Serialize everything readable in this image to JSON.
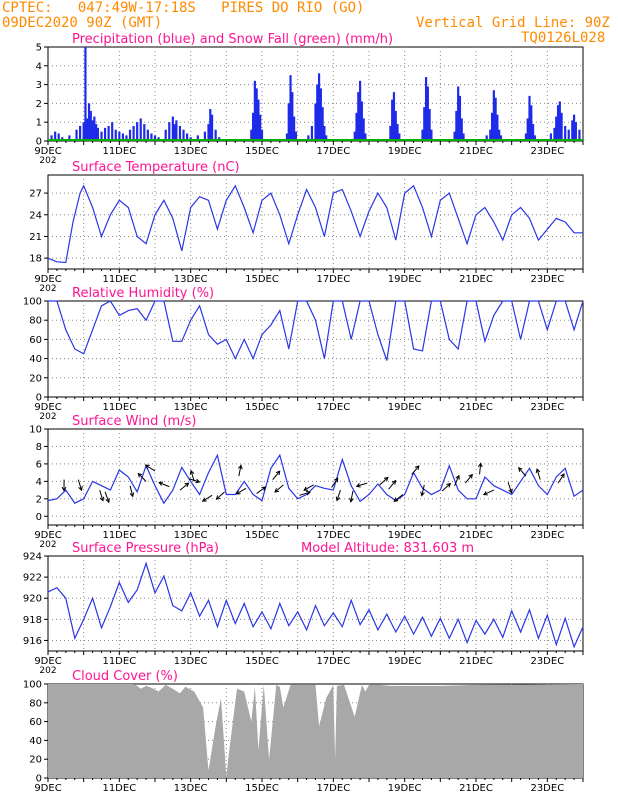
{
  "header": {
    "left_line1": "CPTEC:   047:49W-17:18S   PIRES DO RIO (GO)",
    "left_line2": "09DEC2020 90Z (GMT)",
    "right_line1": "Vertical Grid Line: 90Z",
    "right_line2": "TQ0126L028"
  },
  "colors": {
    "header": "#ff8a00",
    "title": "#ff1493",
    "line": "#2a36e6",
    "bar": "#1f2be8",
    "snow": "#00b000",
    "cloud": "#a8a8a8",
    "vector": "#000000",
    "axis": "#000000"
  },
  "x_tick_labels": [
    "9DEC",
    "11DEC",
    "13DEC",
    "15DEC",
    "17DEC",
    "19DEC",
    "21DEC",
    "23DEC"
  ],
  "clipped_year_label": "202",
  "chart_data": [
    {
      "type": "bar",
      "title": "Precipitation (blue) and Snow Fall (green) (mm/h)",
      "x_unit": "days since 9DEC 00Z",
      "xlim": [
        0,
        15
      ],
      "ylim": [
        0,
        5
      ],
      "yticks": [
        0,
        1,
        2,
        3,
        4,
        5
      ],
      "series": [
        {
          "name": "precipitation",
          "color": "#1f2be8",
          "points": [
            [
              0.1,
              0.3
            ],
            [
              0.2,
              0.5
            ],
            [
              0.3,
              0.4
            ],
            [
              0.4,
              0.2
            ],
            [
              0.5,
              0.1
            ],
            [
              0.6,
              0.3
            ],
            [
              0.8,
              0.6
            ],
            [
              0.9,
              0.8
            ],
            [
              1.0,
              1.0
            ],
            [
              1.05,
              5.0
            ],
            [
              1.1,
              1.2
            ],
            [
              1.15,
              2.0
            ],
            [
              1.2,
              1.6
            ],
            [
              1.25,
              1.1
            ],
            [
              1.3,
              1.3
            ],
            [
              1.35,
              0.9
            ],
            [
              1.4,
              0.7
            ],
            [
              1.5,
              0.5
            ],
            [
              1.6,
              0.7
            ],
            [
              1.7,
              0.8
            ],
            [
              1.8,
              1.0
            ],
            [
              1.9,
              0.6
            ],
            [
              2.0,
              0.5
            ],
            [
              2.1,
              0.4
            ],
            [
              2.2,
              0.3
            ],
            [
              2.3,
              0.6
            ],
            [
              2.4,
              0.8
            ],
            [
              2.5,
              1.0
            ],
            [
              2.6,
              1.2
            ],
            [
              2.7,
              0.9
            ],
            [
              2.8,
              0.6
            ],
            [
              2.9,
              0.4
            ],
            [
              3.0,
              0.3
            ],
            [
              3.1,
              0.2
            ],
            [
              3.3,
              0.6
            ],
            [
              3.4,
              1.0
            ],
            [
              3.5,
              1.3
            ],
            [
              3.55,
              0.9
            ],
            [
              3.6,
              1.1
            ],
            [
              3.7,
              0.8
            ],
            [
              3.8,
              0.6
            ],
            [
              3.9,
              0.4
            ],
            [
              4.0,
              0.2
            ],
            [
              4.2,
              0.3
            ],
            [
              4.4,
              0.5
            ],
            [
              4.5,
              0.9
            ],
            [
              4.55,
              1.7
            ],
            [
              4.6,
              1.4
            ],
            [
              4.7,
              0.6
            ],
            [
              4.8,
              0.2
            ],
            [
              5.7,
              0.6
            ],
            [
              5.75,
              1.5
            ],
            [
              5.8,
              3.2
            ],
            [
              5.85,
              2.8
            ],
            [
              5.9,
              2.2
            ],
            [
              5.95,
              1.4
            ],
            [
              6.0,
              0.6
            ],
            [
              6.7,
              0.4
            ],
            [
              6.75,
              2.0
            ],
            [
              6.8,
              3.5
            ],
            [
              6.85,
              2.6
            ],
            [
              6.9,
              1.3
            ],
            [
              6.95,
              0.5
            ],
            [
              7.3,
              0.3
            ],
            [
              7.4,
              0.8
            ],
            [
              7.5,
              2.0
            ],
            [
              7.55,
              3.0
            ],
            [
              7.6,
              3.6
            ],
            [
              7.65,
              2.8
            ],
            [
              7.7,
              1.8
            ],
            [
              7.75,
              0.8
            ],
            [
              7.8,
              0.3
            ],
            [
              8.6,
              0.5
            ],
            [
              8.65,
              1.5
            ],
            [
              8.7,
              2.6
            ],
            [
              8.75,
              3.2
            ],
            [
              8.8,
              2.1
            ],
            [
              8.85,
              1.2
            ],
            [
              8.9,
              0.4
            ],
            [
              9.6,
              0.8
            ],
            [
              9.65,
              2.2
            ],
            [
              9.7,
              2.6
            ],
            [
              9.75,
              1.6
            ],
            [
              9.8,
              0.9
            ],
            [
              9.85,
              0.4
            ],
            [
              10.5,
              0.6
            ],
            [
              10.55,
              1.8
            ],
            [
              10.6,
              3.4
            ],
            [
              10.65,
              2.9
            ],
            [
              10.7,
              1.7
            ],
            [
              10.75,
              0.6
            ],
            [
              11.4,
              0.5
            ],
            [
              11.45,
              1.6
            ],
            [
              11.5,
              2.9
            ],
            [
              11.55,
              2.4
            ],
            [
              11.6,
              1.2
            ],
            [
              11.65,
              0.4
            ],
            [
              12.3,
              0.3
            ],
            [
              12.4,
              0.6
            ],
            [
              12.45,
              1.5
            ],
            [
              12.5,
              2.7
            ],
            [
              12.55,
              2.3
            ],
            [
              12.6,
              1.4
            ],
            [
              12.65,
              0.6
            ],
            [
              12.7,
              0.3
            ],
            [
              13.4,
              0.4
            ],
            [
              13.45,
              1.2
            ],
            [
              13.5,
              2.4
            ],
            [
              13.55,
              1.9
            ],
            [
              13.6,
              0.9
            ],
            [
              13.65,
              0.3
            ],
            [
              14.1,
              0.4
            ],
            [
              14.2,
              0.7
            ],
            [
              14.25,
              1.3
            ],
            [
              14.3,
              1.9
            ],
            [
              14.35,
              2.1
            ],
            [
              14.4,
              1.5
            ],
            [
              14.5,
              0.8
            ],
            [
              14.6,
              0.6
            ],
            [
              14.7,
              1.1
            ],
            [
              14.75,
              1.4
            ],
            [
              14.8,
              1.0
            ],
            [
              14.9,
              0.6
            ]
          ]
        },
        {
          "name": "snow fall",
          "color": "#00b000",
          "points": [
            [
              0.0,
              0.0
            ],
            [
              15.0,
              0.0
            ]
          ]
        }
      ]
    },
    {
      "type": "line",
      "title": "Surface Temperature (nC)",
      "xlim": [
        0,
        15
      ],
      "ylim": [
        16.5,
        29.5
      ],
      "yticks": [
        18,
        21,
        24,
        27
      ],
      "x": [
        0,
        0.25,
        0.5,
        0.7,
        0.9,
        1.0,
        1.25,
        1.5,
        1.75,
        2.0,
        2.25,
        2.5,
        2.75,
        3.0,
        3.25,
        3.5,
        3.75,
        4.0,
        4.25,
        4.5,
        4.75,
        5.0,
        5.25,
        5.5,
        5.75,
        6.0,
        6.25,
        6.5,
        6.75,
        7.0,
        7.25,
        7.5,
        7.75,
        8.0,
        8.25,
        8.5,
        8.75,
        9.0,
        9.25,
        9.5,
        9.75,
        10.0,
        10.25,
        10.5,
        10.75,
        11.0,
        11.25,
        11.5,
        11.75,
        12.0,
        12.25,
        12.5,
        12.75,
        13.0,
        13.25,
        13.5,
        13.75,
        14.0,
        14.25,
        14.5,
        14.75,
        15.0
      ],
      "y": [
        18,
        17.5,
        17.4,
        23,
        27,
        28,
        25,
        21,
        24,
        26,
        25,
        21,
        20,
        24,
        26,
        23.5,
        19,
        25,
        26.5,
        26,
        22,
        26,
        28,
        25,
        21.5,
        26,
        27,
        24,
        20,
        24,
        27.5,
        25,
        21,
        27,
        27.5,
        24.5,
        21,
        24.5,
        27,
        25,
        20.5,
        27,
        28,
        25,
        21,
        26,
        27,
        23.5,
        20,
        24,
        25,
        23,
        20.5,
        24,
        25,
        23.5,
        20.5,
        22,
        23.5,
        23,
        21.5,
        21.5
      ]
    },
    {
      "type": "line",
      "title": "Relative Humidity (%)",
      "xlim": [
        0,
        15
      ],
      "ylim": [
        0,
        100
      ],
      "yticks": [
        0,
        20,
        40,
        60,
        80,
        100
      ],
      "x": [
        0,
        0.25,
        0.5,
        0.75,
        1.0,
        1.25,
        1.5,
        1.75,
        2.0,
        2.25,
        2.5,
        2.75,
        3.0,
        3.25,
        3.5,
        3.75,
        4.0,
        4.25,
        4.5,
        4.75,
        5.0,
        5.25,
        5.5,
        5.75,
        6.0,
        6.25,
        6.5,
        6.75,
        7.0,
        7.25,
        7.5,
        7.75,
        8.0,
        8.25,
        8.5,
        8.75,
        9.0,
        9.25,
        9.5,
        9.75,
        10.0,
        10.25,
        10.5,
        10.75,
        11.0,
        11.25,
        11.5,
        11.75,
        12.0,
        12.25,
        12.5,
        12.75,
        13.0,
        13.25,
        13.5,
        13.75,
        14.0,
        14.25,
        14.5,
        14.75,
        15.0
      ],
      "y": [
        100,
        100,
        70,
        50,
        45,
        70,
        95,
        100,
        85,
        90,
        92,
        80,
        100,
        100,
        58,
        58,
        80,
        95,
        65,
        55,
        60,
        40,
        60,
        40,
        65,
        75,
        90,
        50,
        100,
        100,
        80,
        40,
        100,
        100,
        60,
        100,
        100,
        65,
        38,
        100,
        100,
        50,
        48,
        100,
        100,
        60,
        50,
        100,
        100,
        58,
        85,
        100,
        100,
        60,
        100,
        100,
        70,
        100,
        100,
        70,
        100
      ]
    },
    {
      "type": "line",
      "title": "Surface Wind (m/s)",
      "xlim": [
        0,
        15
      ],
      "ylim": [
        -1,
        10
      ],
      "yticks": [
        0,
        2,
        4,
        6,
        8,
        10
      ],
      "x": [
        0,
        0.25,
        0.5,
        0.75,
        1.0,
        1.25,
        1.5,
        1.75,
        2.0,
        2.25,
        2.5,
        2.75,
        3.0,
        3.25,
        3.5,
        3.75,
        4.0,
        4.25,
        4.5,
        4.75,
        5.0,
        5.25,
        5.5,
        5.75,
        6.0,
        6.25,
        6.5,
        6.75,
        7.0,
        7.25,
        7.5,
        7.75,
        8.0,
        8.25,
        8.5,
        8.75,
        9.0,
        9.25,
        9.5,
        9.75,
        10.0,
        10.25,
        10.5,
        10.75,
        11.0,
        11.25,
        11.5,
        11.75,
        12.0,
        12.25,
        12.5,
        12.75,
        13.0,
        13.25,
        13.5,
        13.75,
        14.0,
        14.25,
        14.5,
        14.75,
        15.0
      ],
      "y": [
        1.8,
        2.0,
        3.0,
        1.5,
        2.0,
        4.0,
        3.5,
        3.0,
        5.3,
        4.5,
        2.8,
        5.8,
        3.5,
        1.5,
        3.0,
        5.6,
        4.0,
        2.5,
        5.0,
        7.0,
        2.5,
        2.5,
        4.0,
        2.5,
        1.8,
        5.5,
        7.0,
        3.2,
        2.0,
        2.5,
        3.5,
        3.2,
        3.0,
        6.5,
        3.5,
        1.7,
        2.5,
        3.7,
        2.5,
        1.8,
        2.5,
        5.0,
        3.2,
        2.5,
        3.0,
        5.8,
        3.0,
        2.0,
        2.0,
        4.5,
        3.5,
        3.0,
        2.5,
        4.0,
        5.5,
        3.5,
        2.5,
        4.5,
        5.5,
        2.3,
        3.0
      ]
    },
    {
      "type": "line",
      "title": "Surface Pressure (hPa)",
      "annotation": "Model Altitude: 831.603 m",
      "xlim": [
        0,
        15
      ],
      "ylim": [
        915,
        924
      ],
      "yticks": [
        916,
        918,
        920,
        922,
        924
      ],
      "x": [
        0,
        0.25,
        0.5,
        0.75,
        1.0,
        1.25,
        1.5,
        1.75,
        2.0,
        2.25,
        2.5,
        2.75,
        3.0,
        3.25,
        3.5,
        3.75,
        4.0,
        4.25,
        4.5,
        4.75,
        5.0,
        5.25,
        5.5,
        5.75,
        6.0,
        6.25,
        6.5,
        6.75,
        7.0,
        7.25,
        7.5,
        7.75,
        8.0,
        8.25,
        8.5,
        8.75,
        9.0,
        9.25,
        9.5,
        9.75,
        10.0,
        10.25,
        10.5,
        10.75,
        11.0,
        11.25,
        11.5,
        11.75,
        12.0,
        12.25,
        12.5,
        12.75,
        13.0,
        13.25,
        13.5,
        13.75,
        14.0,
        14.25,
        14.5,
        14.75,
        15.0
      ],
      "y": [
        920.6,
        921,
        920,
        916.2,
        918,
        920,
        917.2,
        919.2,
        921.5,
        919.6,
        920.8,
        923.3,
        920.5,
        922.1,
        919.3,
        918.8,
        920.5,
        918.3,
        919.8,
        917.3,
        919.8,
        917.6,
        919.5,
        917.3,
        918.7,
        917.1,
        919.5,
        917.4,
        918.7,
        917,
        919.3,
        917.4,
        918.6,
        917.3,
        919.8,
        917.5,
        918.9,
        917,
        918.5,
        916.8,
        918.3,
        916.6,
        918.2,
        916.4,
        918.1,
        916.2,
        918,
        915.8,
        917.9,
        916.6,
        918,
        916.3,
        918.8,
        916.8,
        918.9,
        916.2,
        918.4,
        915.6,
        918.1,
        915.4,
        917.3
      ]
    },
    {
      "type": "area",
      "title": "Cloud Cover (%)",
      "xlim": [
        0,
        15
      ],
      "ylim": [
        0,
        100
      ],
      "yticks": [
        0,
        20,
        40,
        60,
        80,
        100
      ],
      "x": [
        0,
        2.4,
        2.5,
        2.6,
        2.75,
        2.9,
        3.1,
        3.3,
        3.5,
        3.7,
        3.85,
        4.1,
        4.35,
        4.5,
        4.7,
        4.85,
        5.0,
        5.1,
        5.3,
        5.5,
        5.7,
        5.8,
        5.9,
        6.05,
        6.2,
        6.4,
        6.5,
        6.6,
        6.8,
        7.0,
        7.5,
        7.6,
        7.8,
        8.0,
        8.05,
        8.1,
        8.3,
        8.6,
        8.8,
        8.9,
        9.0,
        9.3,
        9.6,
        10.0,
        11.0,
        12.0,
        15.0
      ],
      "y": [
        100,
        100,
        98,
        95,
        98,
        96,
        92,
        99,
        95,
        90,
        97,
        92,
        75,
        8,
        55,
        85,
        2,
        35,
        95,
        92,
        60,
        97,
        30,
        99,
        20,
        99,
        97,
        75,
        99,
        99,
        99,
        55,
        85,
        99,
        20,
        98,
        99,
        65,
        99,
        92,
        99,
        99,
        98,
        98,
        98,
        99,
        100
      ]
    }
  ]
}
